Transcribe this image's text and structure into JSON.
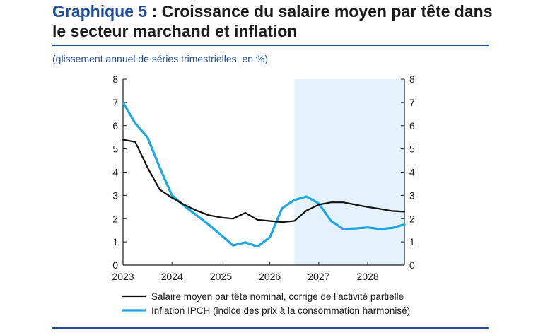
{
  "header": {
    "title_prefix": "Graphique 5",
    "title_rest": " : Croissance du salaire moyen par tête dans le secteur marchand et inflation",
    "subtitle": "(glissement annuel de séries trimestrielles, en %)"
  },
  "colors": {
    "accent": "#1f4e96",
    "series_salaire": "#111111",
    "series_ipch": "#1ea6e0",
    "projection_shade": "#e4f2fb"
  },
  "chart_data": {
    "type": "line",
    "title": "",
    "xlabel": "",
    "ylabel": "",
    "xlim": [
      2023.0,
      2028.75
    ],
    "ylim": [
      0,
      8
    ],
    "x_ticks": [
      "2023",
      "2024",
      "2025",
      "2026",
      "2027",
      "2028"
    ],
    "y_ticks": [
      "0",
      "1",
      "2",
      "3",
      "4",
      "5",
      "6",
      "7",
      "8"
    ],
    "grid": false,
    "legend_position": "bottom",
    "projection_start": 2026.5,
    "series": [
      {
        "name": "Salaire moyen par tête nominal, corrigé de l’activité partielle",
        "color": "#111111",
        "x": [
          2023.0,
          2023.25,
          2023.5,
          2023.75,
          2024.0,
          2024.25,
          2024.5,
          2024.75,
          2025.0,
          2025.25,
          2025.5,
          2025.75,
          2026.0,
          2026.25,
          2026.5,
          2026.75,
          2027.0,
          2027.25,
          2027.5,
          2027.75,
          2028.0,
          2028.25,
          2028.5,
          2028.75
        ],
        "values": [
          5.4,
          5.3,
          4.2,
          3.25,
          2.9,
          2.6,
          2.35,
          2.15,
          2.05,
          2.0,
          2.25,
          1.95,
          1.9,
          1.85,
          1.9,
          2.35,
          2.6,
          2.7,
          2.7,
          2.6,
          2.5,
          2.42,
          2.33,
          2.3
        ]
      },
      {
        "name": "Inflation IPCH (indice des prix à la consommation harmonisé)",
        "color": "#1ea6e0",
        "x": [
          2023.0,
          2023.25,
          2023.5,
          2023.75,
          2024.0,
          2024.25,
          2024.5,
          2024.75,
          2025.0,
          2025.25,
          2025.5,
          2025.75,
          2026.0,
          2026.25,
          2026.5,
          2026.75,
          2027.0,
          2027.25,
          2027.5,
          2027.75,
          2028.0,
          2028.25,
          2028.5,
          2028.75
        ],
        "values": [
          7.0,
          6.1,
          5.5,
          4.2,
          3.0,
          2.55,
          2.15,
          1.75,
          1.3,
          0.85,
          0.98,
          0.8,
          1.2,
          2.45,
          2.8,
          2.95,
          2.65,
          1.9,
          1.55,
          1.58,
          1.62,
          1.55,
          1.6,
          1.75
        ]
      }
    ]
  }
}
